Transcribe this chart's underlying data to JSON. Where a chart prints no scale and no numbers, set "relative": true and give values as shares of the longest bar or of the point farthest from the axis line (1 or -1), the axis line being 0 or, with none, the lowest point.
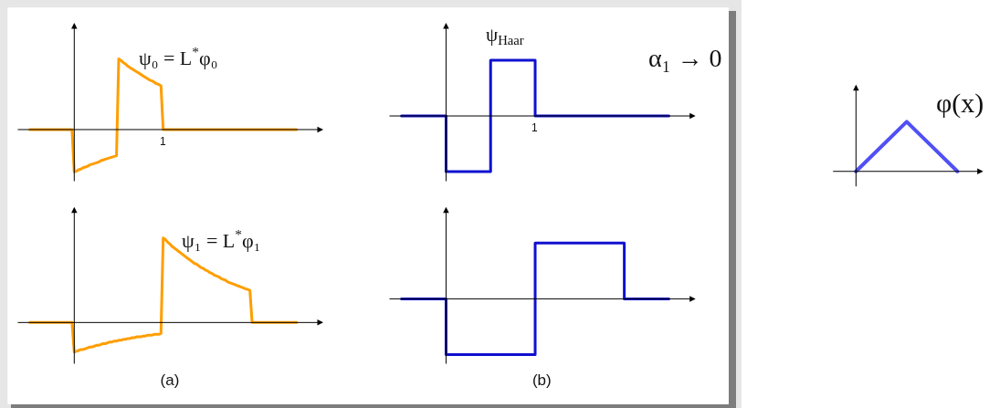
{
  "chart_data": [
    {
      "type": "line",
      "relative": true,
      "categories": [
        null,
        null,
        null,
        null,
        null,
        null,
        null,
        null,
        null,
        null,
        null,
        null,
        null,
        null,
        null,
        null,
        null,
        null,
        null,
        null,
        null,
        null,
        null,
        null,
        null,
        null,
        null,
        null,
        null,
        null,
        null,
        null,
        null,
        null,
        null,
        null,
        null,
        null,
        null,
        null,
        null,
        null,
        null,
        null,
        null,
        null,
        null,
        null,
        null,
        null,
        null,
        null,
        null,
        null,
        null,
        null,
        null,
        null,
        null,
        null,
        null,
        null,
        null,
        null,
        null,
        null,
        null,
        null,
        null,
        null,
        null,
        null,
        null,
        null,
        null,
        null,
        null,
        null,
        null,
        null,
        null,
        null,
        null,
        null,
        null,
        null,
        null,
        null,
        null,
        null,
        null,
        null,
        null,
        null,
        null,
        null,
        null,
        null,
        null,
        null,
        null,
        null,
        null,
        null,
        null,
        null,
        null,
        null,
        null,
        null,
        null,
        null,
        null,
        null,
        null,
        null,
        null,
        null,
        null,
        null,
        null
      ],
      "series": [
        {
          "name": "ψ₀ = L$^{*}$φ₀",
          "color": "#ff9e00",
          "values": [
            0,
            0,
            0,
            0,
            0,
            0,
            0,
            0,
            0,
            0,
            0,
            0,
            0,
            0,
            0,
            0,
            0,
            0,
            0,
            0,
            -0.6,
            -0.59,
            -0.57,
            -0.56,
            -0.54,
            -0.53,
            -0.52,
            -0.5,
            -0.49,
            -0.48,
            -0.47,
            -0.46,
            -0.44,
            -0.43,
            -0.42,
            -0.41,
            -0.4,
            -0.39,
            -0.38,
            -0.37,
            1,
            0.98,
            0.95,
            0.93,
            0.9,
            0.88,
            0.86,
            0.84,
            0.82,
            0.8,
            0.78,
            0.76,
            0.74,
            0.72,
            0.7,
            0.69,
            0.67,
            0.65,
            0.64,
            0.62,
            0,
            0,
            0,
            0,
            0,
            0,
            0,
            0,
            0,
            0,
            0,
            0,
            0,
            0,
            0,
            0,
            0,
            0,
            0,
            0,
            0,
            0,
            0,
            0,
            0,
            0,
            0,
            0,
            0,
            0,
            0,
            0,
            0,
            0,
            0,
            0,
            0,
            0,
            0,
            0,
            0,
            0,
            0,
            0,
            0,
            0,
            0,
            0,
            0,
            0,
            0,
            0,
            0,
            0,
            0,
            0,
            0,
            0,
            0,
            0,
            0
          ]
        }
      ],
      "annotations": [
        "1"
      ]
    },
    {
      "type": "step",
      "relative": true,
      "categories": [
        null,
        null,
        null,
        null,
        null,
        null,
        null
      ],
      "series": [
        {
          "name": "ψ$_{Haar}$",
          "color": "#1010d0",
          "values": [
            0,
            -1,
            1,
            0,
            0,
            0,
            0
          ]
        }
      ],
      "annotations": [
        "α₁ → 0",
        "1"
      ]
    },
    {
      "type": "line",
      "relative": true,
      "categories": [
        null,
        null,
        null
      ],
      "series": [
        {
          "name": "φ(x)",
          "color": "#5050f5",
          "values": [
            0,
            1,
            0
          ]
        }
      ]
    },
    {
      "type": "line",
      "relative": true,
      "categories": [
        null,
        null,
        null,
        null,
        null,
        null,
        null,
        null,
        null,
        null,
        null,
        null,
        null,
        null,
        null,
        null,
        null,
        null,
        null,
        null,
        null,
        null,
        null,
        null,
        null,
        null,
        null,
        null,
        null,
        null,
        null,
        null,
        null,
        null,
        null,
        null,
        null,
        null,
        null,
        null,
        null,
        null,
        null,
        null,
        null,
        null,
        null,
        null,
        null,
        null,
        null,
        null,
        null,
        null,
        null,
        null,
        null,
        null,
        null,
        null,
        null,
        null,
        null,
        null,
        null,
        null,
        null,
        null,
        null,
        null,
        null,
        null,
        null,
        null,
        null,
        null,
        null,
        null,
        null,
        null,
        null,
        null,
        null,
        null,
        null,
        null,
        null,
        null,
        null,
        null,
        null,
        null,
        null,
        null,
        null,
        null,
        null,
        null,
        null,
        null,
        null,
        null,
        null,
        null,
        null,
        null,
        null,
        null,
        null,
        null,
        null,
        null,
        null,
        null,
        null,
        null,
        null,
        null,
        null,
        null,
        null
      ],
      "series": [
        {
          "name": "ψ₁ = L$^{*}$φ₁",
          "color": "#ff9e00",
          "values": [
            0,
            0,
            0,
            0,
            0,
            0,
            0,
            0,
            0,
            0,
            0,
            0,
            0,
            0,
            0,
            0,
            0,
            0,
            0,
            0,
            -0.35,
            -0.34,
            -0.33,
            -0.32,
            -0.32,
            -0.31,
            -0.3,
            -0.29,
            -0.29,
            -0.28,
            -0.27,
            -0.27,
            -0.26,
            -0.25,
            -0.25,
            -0.24,
            -0.23,
            -0.23,
            -0.22,
            -0.22,
            -0.21,
            -0.21,
            -0.2,
            -0.2,
            -0.19,
            -0.19,
            -0.18,
            -0.18,
            -0.17,
            -0.17,
            -0.17,
            -0.16,
            -0.16,
            -0.15,
            -0.15,
            -0.15,
            -0.14,
            -0.14,
            -0.14,
            -0.13,
            1,
            0.98,
            0.95,
            0.93,
            0.9,
            0.88,
            0.86,
            0.84,
            0.82,
            0.8,
            0.78,
            0.76,
            0.74,
            0.72,
            0.7,
            0.69,
            0.67,
            0.65,
            0.64,
            0.62,
            0.61,
            0.59,
            0.58,
            0.56,
            0.55,
            0.54,
            0.52,
            0.51,
            0.5,
            0.48,
            0.47,
            0.46,
            0.45,
            0.44,
            0.43,
            0.42,
            0.41,
            0.4,
            0.39,
            0.38,
            0,
            0,
            0,
            0,
            0,
            0,
            0,
            0,
            0,
            0,
            0,
            0,
            0,
            0,
            0,
            0,
            0,
            0,
            0,
            0,
            0
          ]
        }
      ],
      "xlabel": "(a)"
    },
    {
      "type": "step",
      "relative": true,
      "categories": [
        null,
        null,
        null,
        null,
        null,
        null,
        null
      ],
      "series": [
        {
          "color": "#1010d0",
          "values": [
            0,
            -1,
            -1,
            1,
            1,
            0,
            0
          ]
        }
      ],
      "xlabel": "(b)"
    }
  ]
}
